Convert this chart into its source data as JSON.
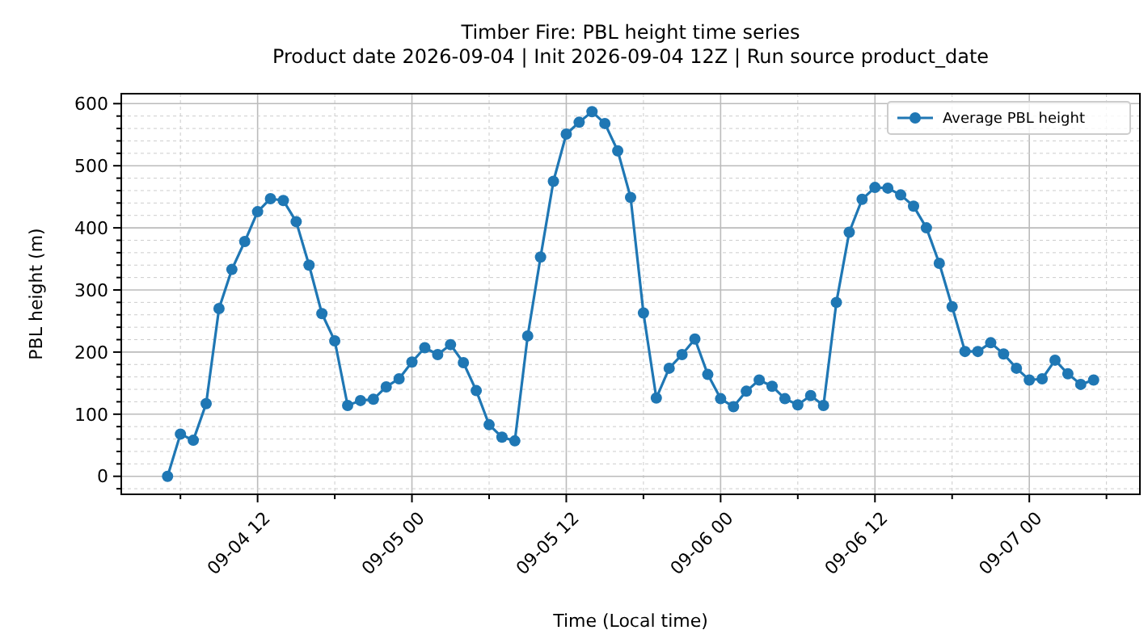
{
  "chart_data": {
    "type": "line",
    "title": "Timber Fire: PBL height time series\nProduct date 2026-09-04 | Init 2026-09-04 12Z | Run source product_date",
    "xlabel": "Time (Local time)",
    "ylabel": "PBL height (m)",
    "x": [
      "2026-09-04T05:00",
      "2026-09-04T06:00",
      "2026-09-04T07:00",
      "2026-09-04T08:00",
      "2026-09-04T09:00",
      "2026-09-04T10:00",
      "2026-09-04T11:00",
      "2026-09-04T12:00",
      "2026-09-04T13:00",
      "2026-09-04T14:00",
      "2026-09-04T15:00",
      "2026-09-04T16:00",
      "2026-09-04T17:00",
      "2026-09-04T18:00",
      "2026-09-04T19:00",
      "2026-09-04T20:00",
      "2026-09-04T21:00",
      "2026-09-04T22:00",
      "2026-09-04T23:00",
      "2026-09-05T00:00",
      "2026-09-05T01:00",
      "2026-09-05T02:00",
      "2026-09-05T03:00",
      "2026-09-05T04:00",
      "2026-09-05T05:00",
      "2026-09-05T06:00",
      "2026-09-05T07:00",
      "2026-09-05T08:00",
      "2026-09-05T09:00",
      "2026-09-05T10:00",
      "2026-09-05T11:00",
      "2026-09-05T12:00",
      "2026-09-05T13:00",
      "2026-09-05T14:00",
      "2026-09-05T15:00",
      "2026-09-05T16:00",
      "2026-09-05T17:00",
      "2026-09-05T18:00",
      "2026-09-05T19:00",
      "2026-09-05T20:00",
      "2026-09-05T21:00",
      "2026-09-05T22:00",
      "2026-09-05T23:00",
      "2026-09-06T00:00",
      "2026-09-06T01:00",
      "2026-09-06T02:00",
      "2026-09-06T03:00",
      "2026-09-06T04:00",
      "2026-09-06T05:00",
      "2026-09-06T06:00",
      "2026-09-06T07:00",
      "2026-09-06T08:00",
      "2026-09-06T09:00",
      "2026-09-06T10:00",
      "2026-09-06T11:00",
      "2026-09-06T12:00",
      "2026-09-06T13:00",
      "2026-09-06T14:00",
      "2026-09-06T15:00",
      "2026-09-06T16:00",
      "2026-09-06T17:00",
      "2026-09-06T18:00",
      "2026-09-06T19:00",
      "2026-09-06T20:00",
      "2026-09-06T21:00",
      "2026-09-06T22:00",
      "2026-09-06T23:00",
      "2026-09-07T00:00",
      "2026-09-07T01:00",
      "2026-09-07T02:00",
      "2026-09-07T03:00",
      "2026-09-07T04:00",
      "2026-09-07T05:00"
    ],
    "series": [
      {
        "name": "Average PBL height",
        "color": "#1f77b4",
        "values": [
          0,
          68,
          58,
          117,
          270,
          333,
          378,
          426,
          447,
          444,
          410,
          340,
          262,
          218,
          114,
          122,
          124,
          144,
          157,
          184,
          207,
          196,
          212,
          183,
          138,
          83,
          63,
          57,
          226,
          353,
          475,
          551,
          570,
          587,
          568,
          524,
          449,
          263,
          126,
          174,
          196,
          221,
          164,
          125,
          112,
          137,
          155,
          145,
          125,
          115,
          130,
          114,
          280,
          393,
          446,
          465,
          464,
          453,
          435,
          400,
          343,
          273,
          201,
          201,
          215,
          197,
          174,
          155,
          157,
          187,
          165,
          148,
          155
        ]
      }
    ],
    "xlim": [
      "2026-09-04T01:24",
      "2026-09-07T08:36"
    ],
    "xticks": [
      {
        "value": "2026-09-04T06:00",
        "label": null
      },
      {
        "value": "2026-09-04T12:00",
        "label": "09-04 12"
      },
      {
        "value": "2026-09-04T18:00",
        "label": null
      },
      {
        "value": "2026-09-05T00:00",
        "label": "09-05 00"
      },
      {
        "value": "2026-09-05T06:00",
        "label": null
      },
      {
        "value": "2026-09-05T12:00",
        "label": "09-05 12"
      },
      {
        "value": "2026-09-05T18:00",
        "label": null
      },
      {
        "value": "2026-09-06T00:00",
        "label": "09-06 00"
      },
      {
        "value": "2026-09-06T06:00",
        "label": null
      },
      {
        "value": "2026-09-06T12:00",
        "label": "09-06 12"
      },
      {
        "value": "2026-09-06T18:00",
        "label": null
      },
      {
        "value": "2026-09-07T00:00",
        "label": "09-07 00"
      },
      {
        "value": "2026-09-07T06:00",
        "label": null
      }
    ],
    "ylim": [
      -29,
      616
    ],
    "yticks": [
      {
        "value": -20,
        "label": null
      },
      0,
      {
        "value": 20,
        "label": null
      },
      {
        "value": 40,
        "label": null
      },
      {
        "value": 60,
        "label": null
      },
      {
        "value": 80,
        "label": null
      },
      100,
      {
        "value": 120,
        "label": null
      },
      {
        "value": 140,
        "label": null
      },
      {
        "value": 160,
        "label": null
      },
      {
        "value": 180,
        "label": null
      },
      200,
      {
        "value": 220,
        "label": null
      },
      {
        "value": 240,
        "label": null
      },
      {
        "value": 260,
        "label": null
      },
      {
        "value": 280,
        "label": null
      },
      300,
      {
        "value": 320,
        "label": null
      },
      {
        "value": 340,
        "label": null
      },
      {
        "value": 360,
        "label": null
      },
      {
        "value": 380,
        "label": null
      },
      400,
      {
        "value": 420,
        "label": null
      },
      {
        "value": 440,
        "label": null
      },
      {
        "value": 460,
        "label": null
      },
      {
        "value": 480,
        "label": null
      },
      500,
      {
        "value": 520,
        "label": null
      },
      {
        "value": 540,
        "label": null
      },
      {
        "value": 560,
        "label": null
      },
      {
        "value": 580,
        "label": null
      },
      600
    ],
    "grid": true,
    "legend": "top right",
    "marker": "circle",
    "line_style": "solid"
  }
}
